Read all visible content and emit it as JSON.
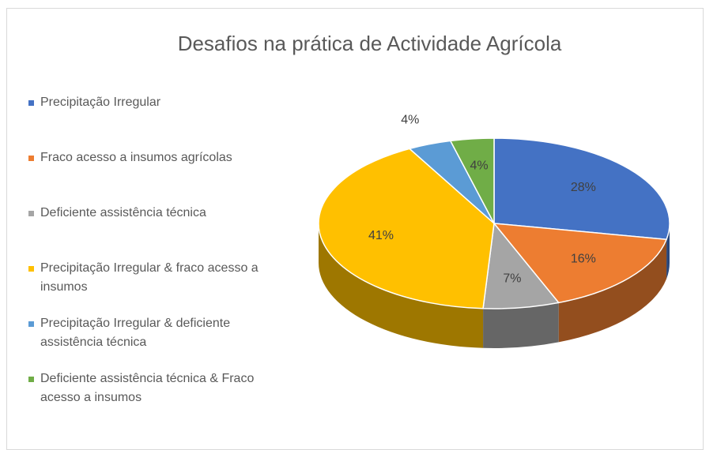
{
  "chart_data": {
    "type": "pie3d",
    "title": "Desafios na prática de Actividade Agrícola",
    "categories": [
      "Precipitação Irregular",
      "Fraco acesso a insumos agrícolas",
      "Deficiente assistência técnica",
      "Precipitação Irregular & fraco acesso a insumos",
      "Precipitação Irregular & deficiente assistência técnica",
      "Deficiente assistência técnica & Fraco acesso a insumos"
    ],
    "values": [
      28,
      16,
      7,
      41,
      4,
      4
    ],
    "value_labels": [
      "28%",
      "16%",
      "7%",
      "41%",
      "4%",
      "4%"
    ],
    "colors": [
      "#4472c4",
      "#ed7d31",
      "#a5a5a5",
      "#ffc000",
      "#5b9bd5",
      "#70ad47"
    ],
    "legend": "left"
  }
}
